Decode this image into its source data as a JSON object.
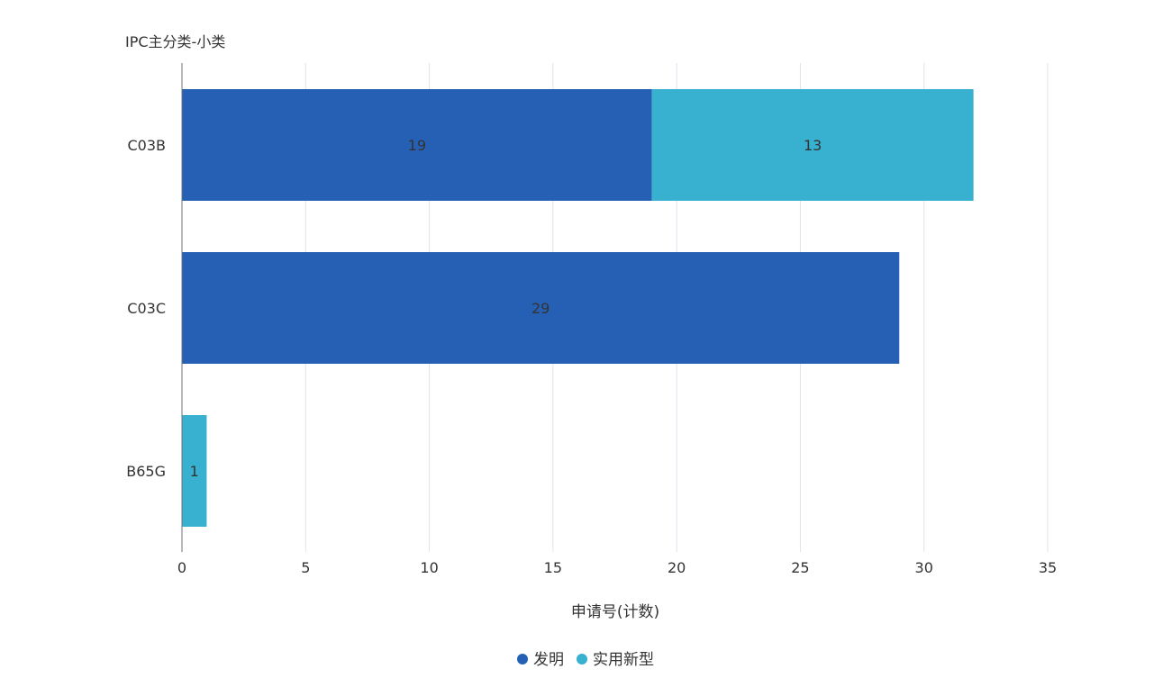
{
  "chart_data": {
    "type": "bar",
    "orientation": "horizontal",
    "stacked": true,
    "title": "",
    "ylabel": "IPC主分类-小类",
    "xlabel": "申请号(计数)",
    "categories": [
      "C03B",
      "C03C",
      "B65G"
    ],
    "series": [
      {
        "name": "发明",
        "values": [
          19,
          29,
          0
        ],
        "color": "#2660b4"
      },
      {
        "name": "实用新型",
        "values": [
          13,
          0,
          1
        ],
        "color": "#38b0d0"
      }
    ],
    "xlim": [
      0,
      35
    ],
    "xticks": [
      0,
      5,
      10,
      15,
      20,
      25,
      30,
      35
    ],
    "grid": true,
    "data_labels": true,
    "legend": "bottom-center"
  }
}
